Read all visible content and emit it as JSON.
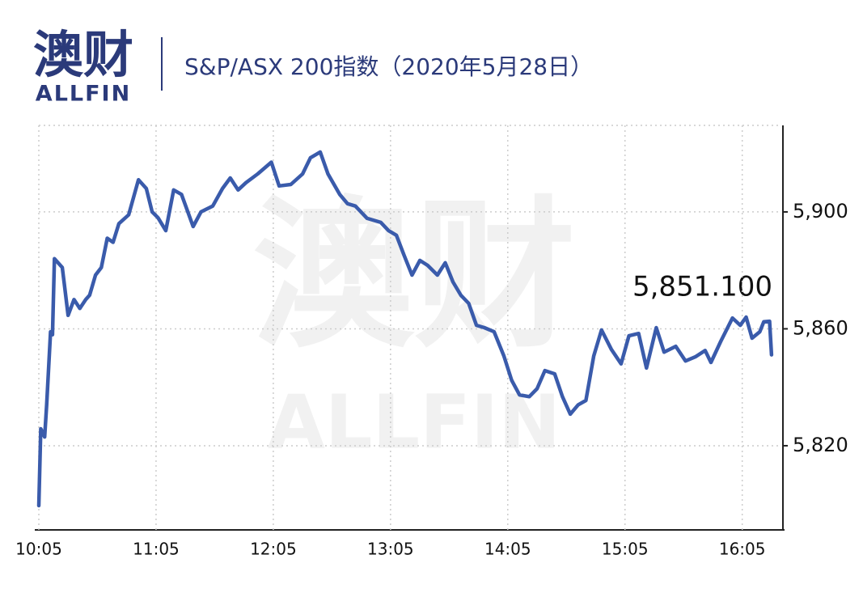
{
  "logo": {
    "name": "澳财",
    "brand": "ALLFIN"
  },
  "chart_data": {
    "type": "line",
    "title": "S&P/ASX 200指数（2020年5月28日）",
    "annotation": "5,851.100",
    "x": [
      "10:05",
      "10:06",
      "10:08",
      "10:09",
      "10:11",
      "10:12",
      "10:13",
      "10:15",
      "10:17",
      "10:18",
      "10:20",
      "10:23",
      "10:26",
      "10:29",
      "10:31",
      "10:34",
      "10:37",
      "10:40",
      "10:43",
      "10:46",
      "10:51",
      "10:56",
      "11:00",
      "11:03",
      "11:06",
      "11:10",
      "11:14",
      "11:18",
      "11:24",
      "11:28",
      "11:34",
      "11:39",
      "11:43",
      "11:47",
      "11:51",
      "11:57",
      "12:04",
      "12:08",
      "12:14",
      "12:20",
      "12:24",
      "12:29",
      "12:33",
      "12:39",
      "12:43",
      "12:47",
      "12:53",
      "13:00",
      "13:04",
      "13:08",
      "13:12",
      "13:16",
      "13:20",
      "13:24",
      "13:29",
      "13:33",
      "13:37",
      "13:41",
      "13:45",
      "13:49",
      "13:53",
      "13:58",
      "14:03",
      "14:07",
      "14:11",
      "14:16",
      "14:20",
      "14:24",
      "14:29",
      "14:33",
      "14:37",
      "14:41",
      "14:45",
      "14:49",
      "14:53",
      "14:58",
      "15:03",
      "15:07",
      "15:12",
      "15:16",
      "15:21",
      "15:25",
      "15:31",
      "15:36",
      "15:41",
      "15:46",
      "15:49",
      "15:54",
      "16:00",
      "16:04",
      "16:07",
      "16:10",
      "16:14",
      "16:16",
      "16:19",
      "16:20"
    ],
    "series": [
      {
        "name": "S&P/ASX 200",
        "color": "#3a5bab",
        "values": [
          5799.5,
          5825.8,
          5823,
          5834,
          5859,
          5858,
          5884,
          5882.5,
          5881,
          5875.6,
          5864.6,
          5870,
          5867,
          5870,
          5871.5,
          5878.4,
          5881,
          5891,
          5889.6,
          5896,
          5899,
          5911,
          5908,
          5900,
          5898,
          5893.6,
          5907.5,
          5906,
          5895,
          5900,
          5902,
          5908,
          5911.6,
          5907.5,
          5910,
          5913,
          5917,
          5908.9,
          5909.4,
          5913,
          5918.5,
          5920.5,
          5913,
          5906,
          5902.8,
          5902,
          5897.8,
          5896.4,
          5893.6,
          5892,
          5885,
          5878.4,
          5883.4,
          5881.7,
          5878.4,
          5882.6,
          5876,
          5871.5,
          5868.7,
          5861.2,
          5860.4,
          5859,
          5850.7,
          5842.4,
          5837.4,
          5836.8,
          5839.5,
          5845.7,
          5844.6,
          5836.8,
          5830.8,
          5834,
          5835.5,
          5850.7,
          5859.6,
          5853,
          5848,
          5857.6,
          5858.4,
          5846.6,
          5860.4,
          5852,
          5854,
          5849,
          5850.4,
          5852.6,
          5848.5,
          5855.7,
          5863.7,
          5861.2,
          5864,
          5856.8,
          5859,
          5862.4,
          5862.6,
          5851.1
        ]
      }
    ],
    "xlim": [
      "10:05",
      "16:25"
    ],
    "xticks": [
      "10:05",
      "11:05",
      "12:05",
      "13:05",
      "14:05",
      "15:05",
      "16:05"
    ],
    "ylim": [
      5791.2,
      5929.6
    ],
    "yticks": [
      {
        "value": 5820,
        "label": "5,820"
      },
      {
        "value": 5860,
        "label": "5,860"
      },
      {
        "value": 5900,
        "label": "5,900"
      }
    ],
    "grid": true
  }
}
